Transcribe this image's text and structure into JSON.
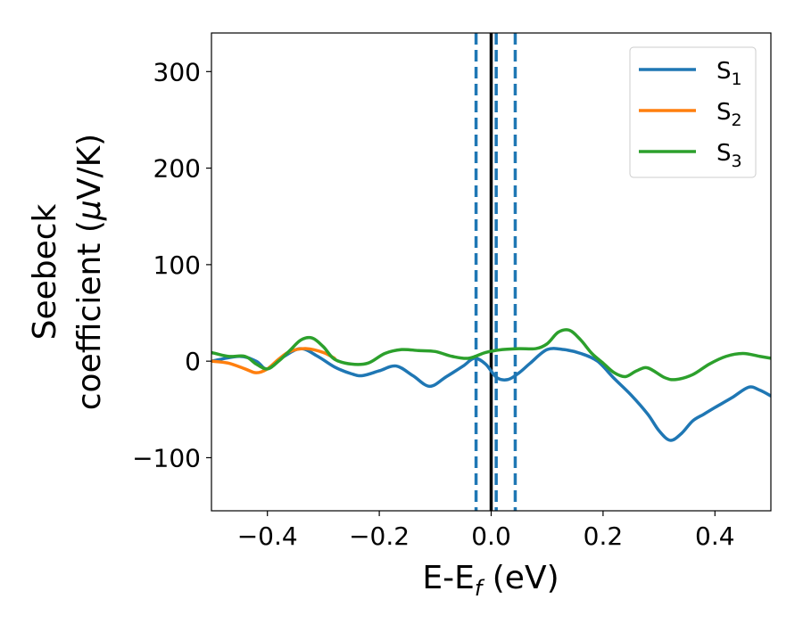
{
  "chart_data": {
    "type": "line",
    "xlabel": {
      "main": "E-E",
      "sub": "f",
      "unit": " (eV)"
    },
    "ylabel": {
      "line1": "Seebeck",
      "line2_pre": "coefficient  (",
      "line2_mu": "μ",
      "line2_post": "V/K)"
    },
    "xlim": [
      -0.5,
      0.5
    ],
    "ylim": [
      -155,
      340
    ],
    "xticks": [
      -0.4,
      -0.2,
      0.0,
      0.2,
      0.4
    ],
    "xtick_labels": [
      "−0.4",
      "−0.2",
      "0.0",
      "0.2",
      "0.4"
    ],
    "yticks": [
      -100,
      0,
      100,
      200,
      300
    ],
    "ytick_labels": [
      "−100",
      "0",
      "100",
      "200",
      "300"
    ],
    "grid": false,
    "legend_position": "top-right",
    "vertical_lines": [
      {
        "x": -0.027,
        "style": "dashed",
        "color": "#1f77b4"
      },
      {
        "x": 0.0,
        "style": "solid",
        "color": "#000000"
      },
      {
        "x": 0.009,
        "style": "dashed",
        "color": "#1f77b4"
      },
      {
        "x": 0.043,
        "style": "dashed",
        "color": "#1f77b4"
      }
    ],
    "series": [
      {
        "name": "S",
        "sub": "1",
        "color": "#1f77b4",
        "x": [
          -0.5,
          -0.45,
          -0.42,
          -0.4,
          -0.37,
          -0.34,
          -0.31,
          -0.28,
          -0.25,
          -0.23,
          -0.2,
          -0.17,
          -0.14,
          -0.11,
          -0.08,
          -0.05,
          -0.03,
          -0.01,
          0.01,
          0.03,
          0.05,
          0.07,
          0.1,
          0.13,
          0.16,
          0.19,
          0.22,
          0.25,
          0.28,
          0.3,
          0.32,
          0.34,
          0.36,
          0.38,
          0.4,
          0.43,
          0.46,
          0.48,
          0.5
        ],
        "y": [
          0,
          5,
          0,
          -8,
          5,
          13,
          5,
          -6,
          -13,
          -15,
          -10,
          -5,
          -15,
          -26,
          -16,
          -5,
          3,
          -3,
          -17,
          -19,
          -12,
          -2,
          12,
          12,
          8,
          0,
          -18,
          -35,
          -55,
          -72,
          -82,
          -75,
          -62,
          -55,
          -48,
          -38,
          -27,
          -30,
          -36
        ]
      },
      {
        "name": "S",
        "sub": "2",
        "color": "#ff7f0e",
        "x": [
          -0.5,
          -0.47,
          -0.44,
          -0.42,
          -0.4,
          -0.38,
          -0.36,
          -0.33,
          -0.3,
          -0.28
        ],
        "y": [
          0,
          -2,
          -8,
          -12,
          -8,
          2,
          10,
          13,
          9,
          3
        ]
      },
      {
        "name": "S",
        "sub": "3",
        "color": "#2ca02c",
        "x": [
          -0.5,
          -0.47,
          -0.44,
          -0.42,
          -0.4,
          -0.38,
          -0.36,
          -0.34,
          -0.32,
          -0.3,
          -0.28,
          -0.25,
          -0.22,
          -0.19,
          -0.16,
          -0.13,
          -0.1,
          -0.07,
          -0.04,
          -0.01,
          0.02,
          0.05,
          0.08,
          0.1,
          0.12,
          0.14,
          0.16,
          0.18,
          0.2,
          0.22,
          0.24,
          0.26,
          0.28,
          0.31,
          0.33,
          0.36,
          0.39,
          0.42,
          0.45,
          0.48,
          0.5
        ],
        "y": [
          9,
          5,
          5,
          -3,
          -8,
          0,
          11,
          22,
          24,
          15,
          2,
          -3,
          -2,
          8,
          12,
          11,
          10,
          5,
          3,
          9,
          12,
          13,
          13,
          18,
          30,
          32,
          22,
          8,
          -2,
          -12,
          -16,
          -10,
          -7,
          -17,
          -19,
          -14,
          -3,
          5,
          8,
          5,
          3
        ]
      }
    ]
  }
}
